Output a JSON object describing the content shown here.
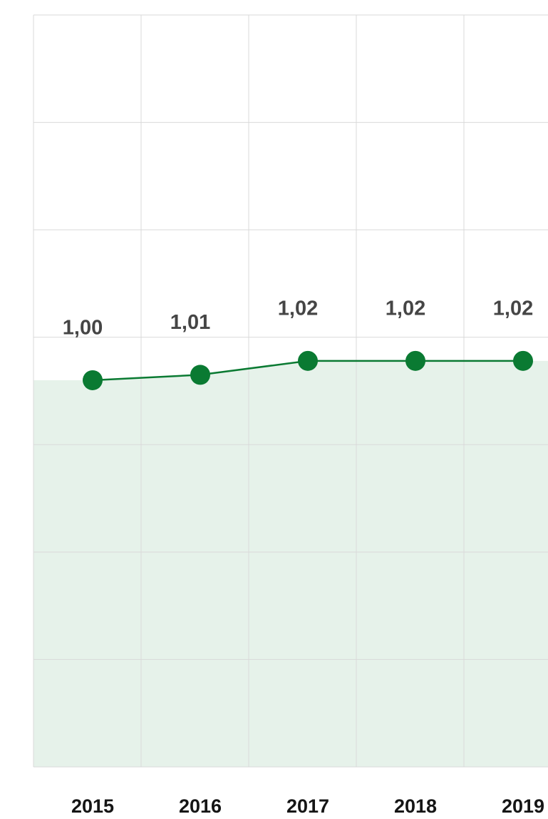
{
  "chart_data": {
    "type": "line",
    "categories": [
      "2015",
      "2016",
      "2017",
      "2018",
      "2019"
    ],
    "series": [
      {
        "name": null,
        "color": "#0a7a32",
        "values": [
          1.0,
          1.005,
          1.018,
          1.018,
          1.018
        ],
        "value_labels": [
          "1,00",
          "1,01",
          "1,02",
          "1,02",
          "1,02"
        ]
      }
    ],
    "area_color": "#e6f2ea",
    "ylim": [
      0.64,
      1.34
    ],
    "yticks": [
      0.64,
      0.74,
      0.84,
      0.94,
      1.04,
      1.14,
      1.24,
      1.34
    ],
    "grid": true
  }
}
